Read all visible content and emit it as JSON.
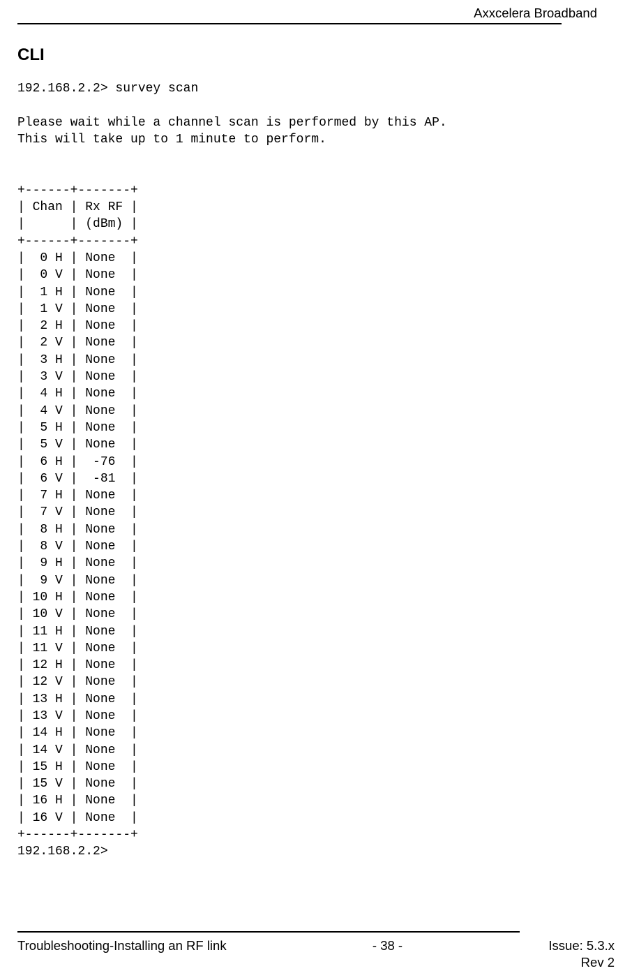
{
  "header": {
    "brand": "Axxcelera Broadband"
  },
  "section": {
    "title": "CLI"
  },
  "cli": {
    "prompt_line": "192.168.2.2> survey scan",
    "wait_line_1": "Please wait while a channel scan is performed by this AP.",
    "wait_line_2": "This will take up to 1 minute to perform.",
    "end_prompt": "192.168.2.2>",
    "table": {
      "divider": "+------+-------+",
      "header_1": "| Chan | Rx RF |",
      "header_2": "|      | (dBm) |",
      "rows": [
        {
          "chan": "  0 H",
          "rx": "None "
        },
        {
          "chan": "  0 V",
          "rx": "None "
        },
        {
          "chan": "  1 H",
          "rx": "None "
        },
        {
          "chan": "  1 V",
          "rx": "None "
        },
        {
          "chan": "  2 H",
          "rx": "None "
        },
        {
          "chan": "  2 V",
          "rx": "None "
        },
        {
          "chan": "  3 H",
          "rx": "None "
        },
        {
          "chan": "  3 V",
          "rx": "None "
        },
        {
          "chan": "  4 H",
          "rx": "None "
        },
        {
          "chan": "  4 V",
          "rx": "None "
        },
        {
          "chan": "  5 H",
          "rx": "None "
        },
        {
          "chan": "  5 V",
          "rx": "None "
        },
        {
          "chan": "  6 H",
          "rx": " -76 "
        },
        {
          "chan": "  6 V",
          "rx": " -81 "
        },
        {
          "chan": "  7 H",
          "rx": "None "
        },
        {
          "chan": "  7 V",
          "rx": "None "
        },
        {
          "chan": "  8 H",
          "rx": "None "
        },
        {
          "chan": "  8 V",
          "rx": "None "
        },
        {
          "chan": "  9 H",
          "rx": "None "
        },
        {
          "chan": "  9 V",
          "rx": "None "
        },
        {
          "chan": " 10 H",
          "rx": "None "
        },
        {
          "chan": " 10 V",
          "rx": "None "
        },
        {
          "chan": " 11 H",
          "rx": "None "
        },
        {
          "chan": " 11 V",
          "rx": "None "
        },
        {
          "chan": " 12 H",
          "rx": "None "
        },
        {
          "chan": " 12 V",
          "rx": "None "
        },
        {
          "chan": " 13 H",
          "rx": "None "
        },
        {
          "chan": " 13 V",
          "rx": "None "
        },
        {
          "chan": " 14 H",
          "rx": "None "
        },
        {
          "chan": " 14 V",
          "rx": "None "
        },
        {
          "chan": " 15 H",
          "rx": "None "
        },
        {
          "chan": " 15 V",
          "rx": "None "
        },
        {
          "chan": " 16 H",
          "rx": "None "
        },
        {
          "chan": " 16 V",
          "rx": "None "
        }
      ]
    }
  },
  "footer": {
    "left": "Troubleshooting-Installing an RF link",
    "center": "- 38 -",
    "right": "Issue: 5.3.x",
    "rev": "Rev 2"
  }
}
